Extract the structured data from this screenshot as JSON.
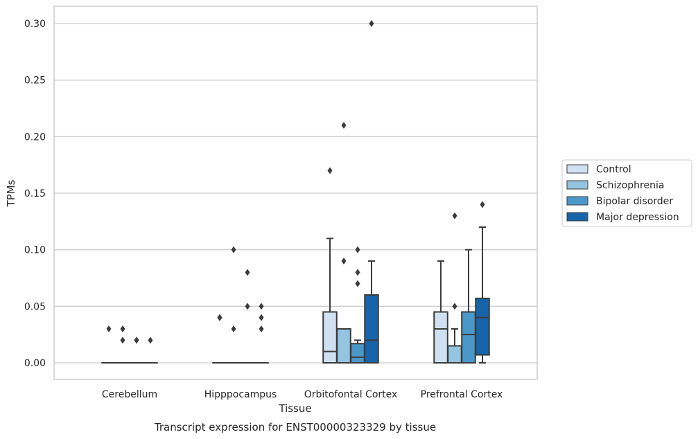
{
  "caption": "Transcript expression for ENST00000323329 by tissue",
  "chart_data": {
    "type": "boxplot",
    "xlabel": "Tissue",
    "ylabel": "TPMs",
    "ylim": [
      -0.015,
      0.315
    ],
    "yticks": [
      "0.00",
      "0.05",
      "0.10",
      "0.15",
      "0.20",
      "0.25",
      "0.30"
    ],
    "ytick_values": [
      0,
      0.05,
      0.1,
      0.15,
      0.2,
      0.25,
      0.3
    ],
    "grid": "horizontal",
    "legend_position": "right",
    "categories": [
      "Cerebellum",
      "Hipppocampus",
      "Orbitofontal Cortex",
      "Prefrontal Cortex"
    ],
    "series": [
      {
        "name": "Control",
        "color": "#d0e1f2",
        "boxes": [
          {
            "q1": 0,
            "median": 0,
            "q3": 0,
            "whislo": 0,
            "whishi": 0,
            "fliers": [
              0.03
            ]
          },
          {
            "q1": 0,
            "median": 0,
            "q3": 0,
            "whislo": 0,
            "whishi": 0,
            "fliers": [
              0.04,
              0.04
            ]
          },
          {
            "q1": 0,
            "median": 0.01,
            "q3": 0.045,
            "whislo": 0,
            "whishi": 0.11,
            "fliers": [
              0.17
            ]
          },
          {
            "q1": 0,
            "median": 0.03,
            "q3": 0.045,
            "whislo": 0,
            "whishi": 0.09,
            "fliers": []
          }
        ]
      },
      {
        "name": "Schizophrenia",
        "color": "#94c4df",
        "boxes": [
          {
            "q1": 0,
            "median": 0,
            "q3": 0,
            "whislo": 0,
            "whishi": 0,
            "fliers": [
              0.03,
              0.02
            ]
          },
          {
            "q1": 0,
            "median": 0,
            "q3": 0,
            "whislo": 0,
            "whishi": 0,
            "fliers": [
              0.1,
              0.03
            ]
          },
          {
            "q1": 0,
            "median": 0,
            "q3": 0.03,
            "whislo": 0,
            "whishi": 0.03,
            "fliers": [
              0.21,
              0.09
            ]
          },
          {
            "q1": 0,
            "median": 0,
            "q3": 0.015,
            "whislo": 0,
            "whishi": 0.03,
            "fliers": [
              0.13,
              0.05
            ]
          }
        ]
      },
      {
        "name": "Bipolar disorder",
        "color": "#4a98c9",
        "boxes": [
          {
            "q1": 0,
            "median": 0,
            "q3": 0,
            "whislo": 0,
            "whishi": 0,
            "fliers": [
              0.02,
              0.02
            ]
          },
          {
            "q1": 0,
            "median": 0,
            "q3": 0,
            "whislo": 0,
            "whishi": 0,
            "fliers": [
              0.08,
              0.05
            ]
          },
          {
            "q1": 0,
            "median": 0.005,
            "q3": 0.017,
            "whislo": 0,
            "whishi": 0.02,
            "fliers": [
              0.1,
              0.08,
              0.07
            ]
          },
          {
            "q1": 0,
            "median": 0.025,
            "q3": 0.045,
            "whislo": 0,
            "whishi": 0.1,
            "fliers": []
          }
        ]
      },
      {
        "name": "Major depression",
        "color": "#1764ab",
        "boxes": [
          {
            "q1": 0,
            "median": 0,
            "q3": 0,
            "whislo": 0,
            "whishi": 0,
            "fliers": [
              0.02
            ]
          },
          {
            "q1": 0,
            "median": 0,
            "q3": 0,
            "whislo": 0,
            "whishi": 0,
            "fliers": [
              0.05,
              0.04,
              0.03
            ]
          },
          {
            "q1": 0,
            "median": 0.02,
            "q3": 0.06,
            "whislo": 0,
            "whishi": 0.09,
            "fliers": [
              0.3
            ]
          },
          {
            "q1": 0.007,
            "median": 0.04,
            "q3": 0.057,
            "whislo": 0,
            "whishi": 0.12,
            "fliers": [
              0.14
            ]
          }
        ]
      }
    ]
  }
}
